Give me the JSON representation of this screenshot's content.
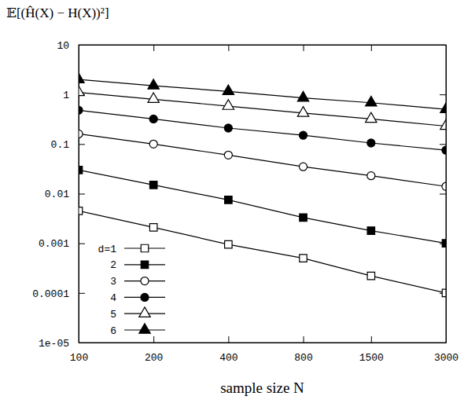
{
  "chart_data": {
    "type": "line",
    "title": "𝔼[(Ĥ(X) − H(X))²]",
    "x_label": "sample size N",
    "x": [
      100,
      200,
      400,
      800,
      1500,
      3000
    ],
    "series": [
      {
        "name": "d=1",
        "color": "#000000",
        "marker": "square-open",
        "line_style": "solid",
        "values": [
          0.0045,
          0.0021,
          0.00095,
          0.0005,
          0.00022,
          0.0001
        ]
      },
      {
        "name": "2",
        "color": "#000000",
        "marker": "square",
        "line_style": "solid",
        "values": [
          0.03,
          0.015,
          0.0075,
          0.0033,
          0.0018,
          0.001
        ]
      },
      {
        "name": "3",
        "color": "#000000",
        "marker": "circle-open",
        "line_style": "solid",
        "values": [
          0.16,
          0.1,
          0.06,
          0.035,
          0.023,
          0.014
        ]
      },
      {
        "name": "4",
        "color": "#000000",
        "marker": "circle",
        "line_style": "solid",
        "values": [
          0.48,
          0.32,
          0.21,
          0.15,
          0.105,
          0.075
        ]
      },
      {
        "name": "5",
        "color": "#000000",
        "marker": "triangle-open",
        "line_style": "solid",
        "values": [
          1.1,
          0.8,
          0.58,
          0.42,
          0.32,
          0.23
        ]
      },
      {
        "name": "6",
        "color": "#000000",
        "marker": "triangle",
        "line_style": "solid",
        "values": [
          2.0,
          1.5,
          1.15,
          0.85,
          0.68,
          0.5
        ]
      }
    ],
    "xlim": [
      100,
      3000
    ],
    "xticks": [
      100,
      200,
      400,
      800,
      1500,
      3000
    ],
    "ylim": [
      1e-05,
      10
    ],
    "yticks": [
      {
        "value": 1e-05,
        "label": "1e-05"
      },
      0.0001,
      0.001,
      0.01,
      0.1,
      1,
      10
    ],
    "log": true,
    "grid": false,
    "legend": "lower left"
  }
}
